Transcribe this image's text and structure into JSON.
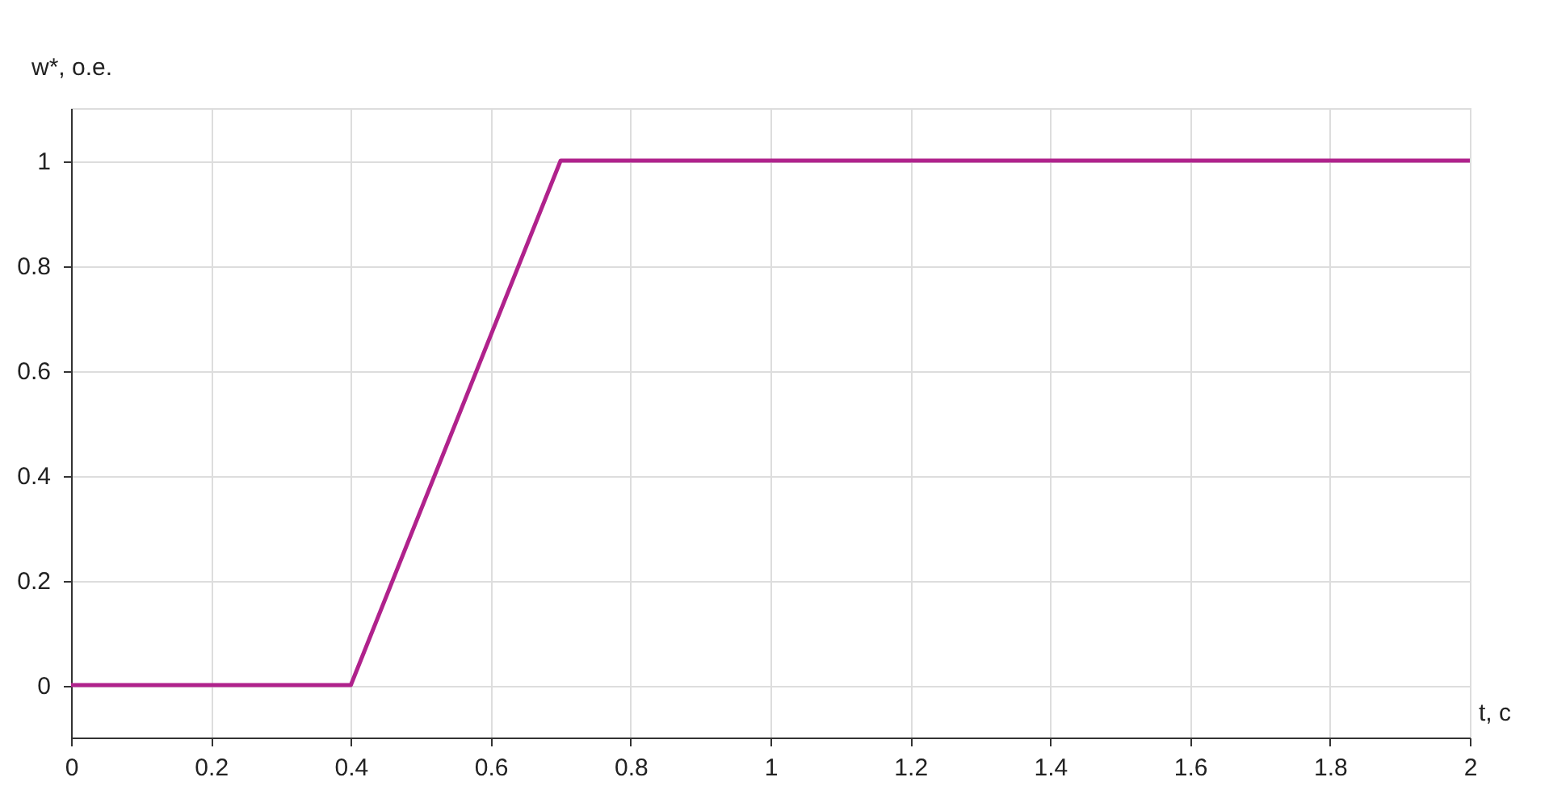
{
  "chart_data": {
    "type": "line",
    "xlabel": "t, с",
    "ylabel": "w*, о.е.",
    "x": [
      0,
      0.4,
      0.7,
      2
    ],
    "series": [
      {
        "color": "#b0228c",
        "values": [
          0,
          0,
          1,
          1
        ]
      }
    ],
    "xlim": [
      0,
      2
    ],
    "xticks": [
      0,
      0.2,
      0.4,
      0.6,
      0.8,
      1,
      1.2,
      1.4,
      1.6,
      1.8,
      2
    ],
    "ylim": [
      -0.1,
      1.1
    ],
    "yticks": [
      0,
      0.2,
      0.4,
      0.6,
      0.8,
      1
    ],
    "grid": true,
    "legend": false,
    "marker": "none",
    "line_style": "solid"
  }
}
